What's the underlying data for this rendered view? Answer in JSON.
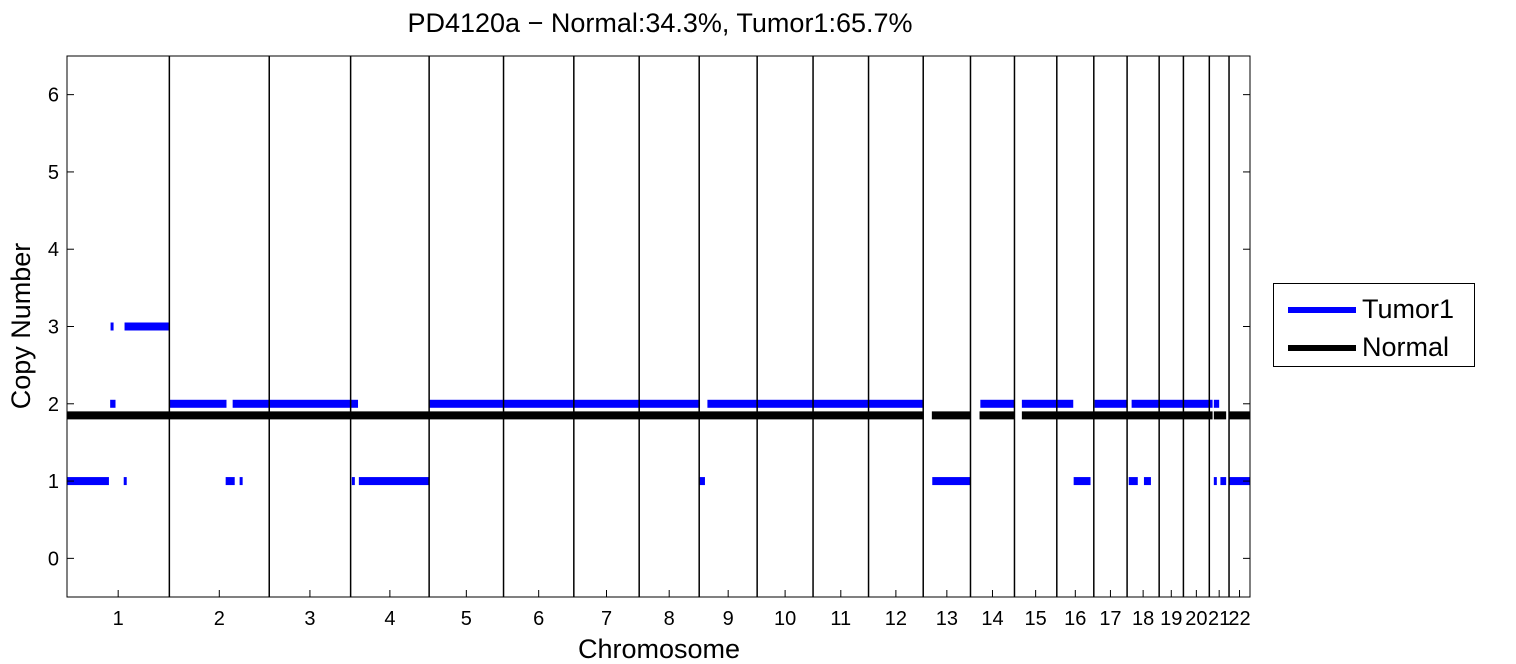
{
  "chart_data": {
    "type": "scatter",
    "title": "PD4120a − Normal:34.3%, Tumor1:65.7%",
    "xlabel": "Chromosome",
    "ylabel": "Copy Number",
    "ylim": [
      -0.5,
      6.5
    ],
    "yticks": [
      0,
      1,
      2,
      3,
      4,
      5,
      6
    ],
    "grid": false,
    "legend_position": "right",
    "chromosomes": [
      {
        "label": "1",
        "start": 0,
        "end": 249
      },
      {
        "label": "2",
        "start": 249,
        "end": 492
      },
      {
        "label": "3",
        "start": 492,
        "end": 690
      },
      {
        "label": "4",
        "start": 690,
        "end": 881
      },
      {
        "label": "5",
        "start": 881,
        "end": 1062
      },
      {
        "label": "6",
        "start": 1062,
        "end": 1233
      },
      {
        "label": "7",
        "start": 1233,
        "end": 1392
      },
      {
        "label": "8",
        "start": 1392,
        "end": 1538
      },
      {
        "label": "9",
        "start": 1538,
        "end": 1679
      },
      {
        "label": "10",
        "start": 1679,
        "end": 1815
      },
      {
        "label": "11",
        "start": 1815,
        "end": 1950
      },
      {
        "label": "12",
        "start": 1950,
        "end": 2083
      },
      {
        "label": "13",
        "start": 2083,
        "end": 2198
      },
      {
        "label": "14",
        "start": 2198,
        "end": 2305
      },
      {
        "label": "15",
        "start": 2305,
        "end": 2408
      },
      {
        "label": "16",
        "start": 2408,
        "end": 2498
      },
      {
        "label": "17",
        "start": 2498,
        "end": 2579
      },
      {
        "label": "18",
        "start": 2579,
        "end": 2657
      },
      {
        "label": "19",
        "start": 2657,
        "end": 2716
      },
      {
        "label": "20",
        "start": 2716,
        "end": 2779
      },
      {
        "label": "21",
        "start": 2779,
        "end": 2827
      },
      {
        "label": "22",
        "start": 2827,
        "end": 2878
      }
    ],
    "series": [
      {
        "name": "Tumor1",
        "color": "#0000ff",
        "segments": [
          {
            "x": [
              0,
              102
            ],
            "y": 1
          },
          {
            "x": [
              105,
              118
            ],
            "y": 2
          },
          {
            "x": [
              106,
              110
            ],
            "y": 3
          },
          {
            "x": [
              138,
              142
            ],
            "y": 1
          },
          {
            "x": [
              140,
              249
            ],
            "y": 3
          },
          {
            "x": [
              249,
              388
            ],
            "y": 2
          },
          {
            "x": [
              386,
              408
            ],
            "y": 1
          },
          {
            "x": [
              420,
              425
            ],
            "y": 1
          },
          {
            "x": [
              403,
              692
            ],
            "y": 2
          },
          {
            "x": [
              690,
              708
            ],
            "y": 2
          },
          {
            "x": [
              693,
              697
            ],
            "y": 1
          },
          {
            "x": [
              710,
              881
            ],
            "y": 1
          },
          {
            "x": [
              881,
              1540
            ],
            "y": 2
          },
          {
            "x": [
              1537,
              1552
            ],
            "y": 1
          },
          {
            "x": [
              1558,
              2083
            ],
            "y": 2
          },
          {
            "x": [
              2105,
              2198
            ],
            "y": 1
          },
          {
            "x": [
              2222,
              2305
            ],
            "y": 2
          },
          {
            "x": [
              2323,
              2448
            ],
            "y": 2
          },
          {
            "x": [
              2449,
              2490
            ],
            "y": 1
          },
          {
            "x": [
              2500,
              2579
            ],
            "y": 2
          },
          {
            "x": [
              2583,
              2605
            ],
            "y": 1
          },
          {
            "x": [
              2620,
              2637
            ],
            "y": 1
          },
          {
            "x": [
              2590,
              2787
            ],
            "y": 2
          },
          {
            "x": [
              2790,
              2803
            ],
            "y": 2
          },
          {
            "x": [
              2790,
              2797
            ],
            "y": 1
          },
          {
            "x": [
              2806,
              2820
            ],
            "y": 1
          },
          {
            "x": [
              2828,
              2878
            ],
            "y": 1
          }
        ]
      },
      {
        "name": "Normal",
        "color": "#000000",
        "segments": [
          {
            "x": [
              0,
              2083
            ],
            "y": 1.85
          },
          {
            "x": [
              2104,
              2198
            ],
            "y": 1.85
          },
          {
            "x": [
              2220,
              2305
            ],
            "y": 1.85
          },
          {
            "x": [
              2323,
              2787
            ],
            "y": 1.85
          },
          {
            "x": [
              2790,
              2820
            ],
            "y": 1.85
          },
          {
            "x": [
              2828,
              2878
            ],
            "y": 1.85
          }
        ]
      }
    ]
  }
}
